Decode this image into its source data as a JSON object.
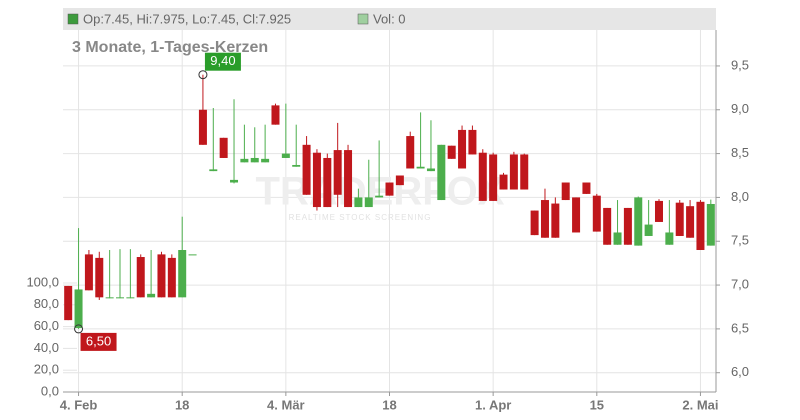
{
  "chart_data": {
    "type": "candlestick",
    "title": "3 Monate, 1-Tages-Kerzen",
    "legend": [
      {
        "text": "Op:7.45, Hi:7.975, Lo:7.45, Cl:7.925",
        "color": "#3d9b3d"
      },
      {
        "text": "Vol: 0",
        "color": "#9fcf9f"
      }
    ],
    "watermark": {
      "title": "TRADERFOX",
      "subtitle": "REALTIME STOCK SCREENING"
    },
    "categories": [
      null,
      "4. Feb",
      null,
      null,
      null,
      null,
      null,
      null,
      null,
      null,
      null,
      "18",
      null,
      null,
      null,
      null,
      null,
      null,
      null,
      null,
      null,
      "4. Mär",
      null,
      null,
      null,
      null,
      null,
      null,
      null,
      null,
      null,
      "18",
      null,
      null,
      null,
      null,
      null,
      null,
      null,
      null,
      null,
      "1. Apr",
      null,
      null,
      null,
      null,
      null,
      null,
      null,
      null,
      null,
      "15",
      null,
      null,
      null,
      null,
      null,
      null,
      null,
      null,
      null,
      "2. Mai",
      null
    ],
    "open": [
      6.99,
      6.51,
      7.35,
      7.31,
      6.85,
      6.85,
      6.85,
      7.32,
      6.86,
      7.35,
      7.31,
      6.86,
      7.35,
      9.0,
      8.3,
      8.68,
      8.17,
      8.4,
      8.4,
      8.4,
      9.05,
      8.45,
      8.35,
      8.6,
      8.51,
      8.45,
      8.54,
      8.54,
      7.89,
      7.89,
      8.0,
      8.17,
      8.25,
      8.7,
      8.33,
      8.3,
      7.97,
      8.59,
      8.77,
      8.77,
      8.51,
      8.49,
      8.26,
      8.49,
      8.49,
      7.85,
      7.97,
      7.93,
      8.17,
      8.0,
      8.17,
      8.02,
      7.88,
      7.46,
      7.88,
      7.45,
      7.56,
      7.96,
      7.46,
      7.94,
      7.9,
      7.95,
      7.45
    ],
    "high": [
      6.99,
      7.65,
      7.4,
      7.38,
      7.4,
      7.41,
      7.41,
      7.35,
      7.4,
      7.38,
      7.35,
      7.78,
      7.35,
      9.4,
      9.02,
      8.68,
      9.12,
      8.83,
      8.8,
      8.83,
      9.07,
      9.07,
      8.83,
      8.7,
      8.55,
      8.5,
      8.85,
      8.6,
      8.1,
      8.43,
      8.65,
      8.17,
      8.25,
      8.75,
      8.97,
      8.88,
      8.6,
      8.59,
      8.82,
      8.82,
      8.55,
      8.51,
      8.28,
      8.52,
      8.5,
      7.85,
      8.1,
      8.0,
      8.17,
      8.0,
      8.17,
      8.04,
      7.88,
      7.97,
      7.88,
      8.01,
      7.97,
      7.98,
      7.97,
      7.97,
      7.97,
      7.97,
      7.975
    ],
    "low": [
      6.6,
      6.5,
      6.94,
      6.83,
      6.85,
      6.85,
      6.85,
      6.86,
      6.86,
      6.86,
      6.86,
      6.86,
      7.35,
      8.6,
      8.3,
      8.45,
      8.16,
      8.4,
      8.4,
      8.4,
      8.83,
      8.45,
      8.35,
      8.03,
      7.85,
      7.89,
      7.89,
      7.89,
      7.89,
      7.89,
      8.0,
      8.02,
      8.14,
      8.33,
      8.33,
      8.3,
      7.97,
      8.44,
      8.33,
      8.49,
      7.96,
      7.96,
      8.09,
      8.09,
      8.09,
      7.57,
      7.54,
      7.54,
      7.97,
      7.6,
      8.04,
      7.61,
      7.46,
      7.46,
      7.46,
      7.45,
      7.56,
      7.72,
      7.46,
      7.56,
      7.54,
      7.4,
      7.45
    ],
    "close": [
      6.6,
      6.95,
      6.94,
      6.86,
      6.86,
      6.86,
      6.86,
      6.86,
      6.9,
      6.86,
      6.86,
      7.4,
      7.35,
      8.6,
      8.32,
      8.45,
      8.2,
      8.44,
      8.45,
      8.44,
      8.83,
      8.5,
      8.37,
      8.03,
      7.89,
      7.89,
      8.03,
      7.89,
      8.0,
      8.0,
      8.02,
      8.02,
      8.14,
      8.33,
      8.35,
      8.33,
      8.6,
      8.44,
      8.33,
      8.49,
      7.96,
      7.96,
      8.09,
      8.09,
      8.09,
      7.57,
      7.54,
      7.54,
      7.97,
      7.6,
      8.04,
      7.61,
      7.46,
      7.6,
      7.46,
      8.0,
      7.69,
      7.72,
      7.6,
      7.56,
      7.54,
      7.4,
      7.925
    ],
    "up_color": "#4cae4c",
    "down_color": "#c0171c",
    "annotations": [
      {
        "label": "9,40",
        "value": 9.4,
        "color": "#2a9d2a"
      },
      {
        "label": "6,50",
        "value": 6.5,
        "color": "#c0171c"
      }
    ],
    "ylim": [
      5.78,
      9.91
    ],
    "yticks": [
      {
        "value": 6.0,
        "label": "6,0"
      },
      {
        "value": 6.5,
        "label": "6,5"
      },
      {
        "value": 7.0,
        "label": "7,0"
      },
      {
        "value": 7.5,
        "label": "7,5"
      },
      {
        "value": 8.0,
        "label": "8,0"
      },
      {
        "value": 8.5,
        "label": "8,5"
      },
      {
        "value": 9.0,
        "label": "9,0"
      },
      {
        "value": 9.5,
        "label": "9,5"
      }
    ],
    "y2lim": [
      0,
      100
    ],
    "y2ticks": [
      {
        "value": 0,
        "label": "0,0"
      },
      {
        "value": 20,
        "label": "20,0"
      },
      {
        "value": 40,
        "label": "40,0"
      },
      {
        "value": 60,
        "label": "60,0"
      },
      {
        "value": 80,
        "label": "80,0"
      },
      {
        "value": 100,
        "label": "100,0"
      }
    ],
    "grid": true
  }
}
